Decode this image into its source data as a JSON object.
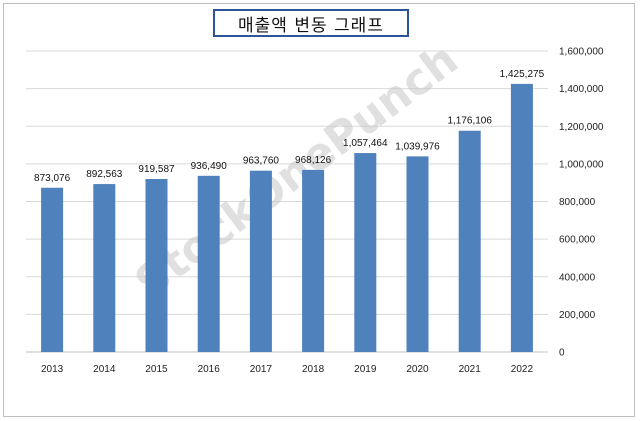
{
  "watermark": "StockOnePunch",
  "chart_data": {
    "type": "bar",
    "title": "매출액 변동 그래프",
    "categories": [
      "2013",
      "2014",
      "2015",
      "2016",
      "2017",
      "2018",
      "2019",
      "2020",
      "2021",
      "2022"
    ],
    "values": [
      873076,
      892563,
      919587,
      936490,
      963760,
      968126,
      1057464,
      1039976,
      1176106,
      1425275
    ],
    "data_labels": [
      "873,076",
      "892,563",
      "919,587",
      "936,490",
      "963,760",
      "968,126",
      "1,057,464",
      "1,039,976",
      "1,176,106",
      "1,425,275"
    ],
    "ylim": [
      0,
      1600000
    ],
    "yticks": [
      0,
      200000,
      400000,
      600000,
      800000,
      1000000,
      1200000,
      1400000,
      1600000
    ],
    "ytick_labels": [
      "0",
      "200,000",
      "400,000",
      "600,000",
      "800,000",
      "1,000,000",
      "1,200,000",
      "1,400,000",
      "1,600,000"
    ],
    "y_axis_side": "right",
    "grid": true,
    "bar_color": "#4f81bd",
    "grid_color": "#d9d9d9",
    "title_border_color": "#2e5597"
  }
}
